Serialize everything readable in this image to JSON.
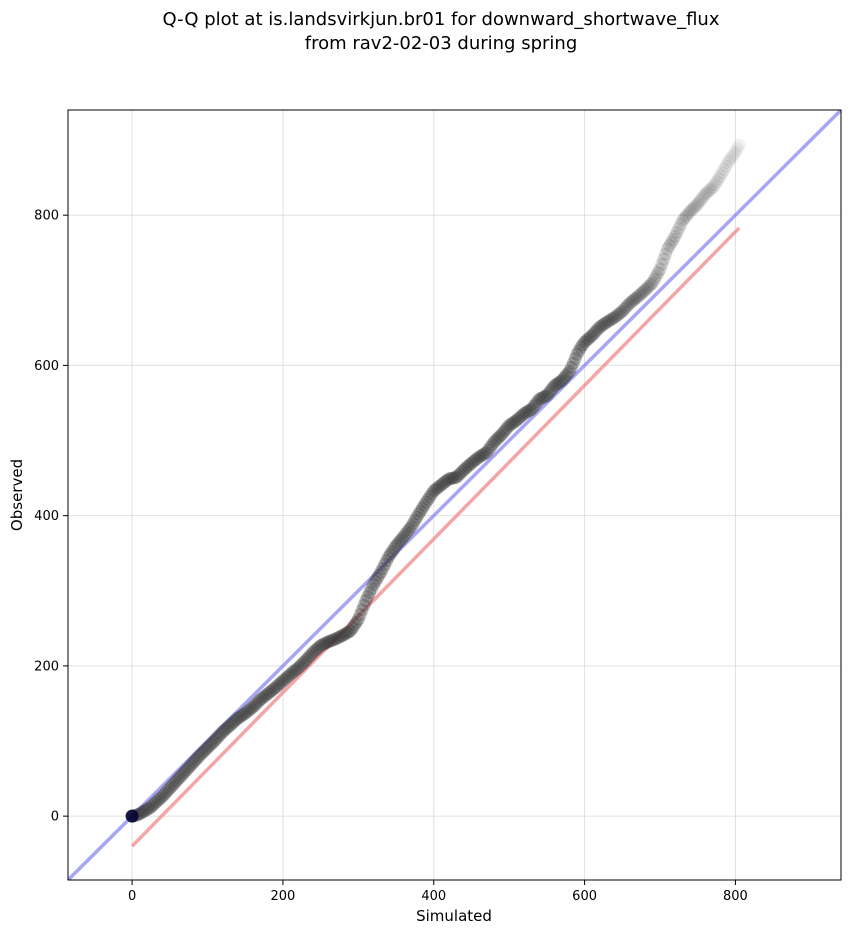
{
  "chart_data": {
    "type": "scatter",
    "title": "Q-Q plot at is.landsvirkjun.br01 for downward_shortwave_flux",
    "subtitle": "from rav2-02-03 during spring",
    "xlabel": "Simulated",
    "ylabel": "Observed",
    "xlim": [
      -85,
      940
    ],
    "ylim": [
      -85,
      940
    ],
    "xticks": [
      0,
      200,
      400,
      600,
      800
    ],
    "yticks": [
      0,
      200,
      400,
      600,
      800
    ],
    "grid": true,
    "lines": [
      {
        "kind": "identity",
        "color": "#7777ee",
        "x": [
          -85,
          940
        ],
        "y": [
          -85,
          940
        ]
      },
      {
        "kind": "fit",
        "color": "#ee7777",
        "x": [
          0,
          805
        ],
        "y": [
          -40,
          783
        ]
      }
    ],
    "quantiles": {
      "x": [
        0,
        5,
        10,
        15,
        20,
        25,
        30,
        40,
        50,
        60,
        70,
        80,
        90,
        100,
        110,
        120,
        130,
        140,
        150,
        160,
        170,
        180,
        190,
        200,
        210,
        220,
        230,
        240,
        250,
        260,
        270,
        280,
        290,
        300,
        310,
        320,
        330,
        340,
        350,
        360,
        370,
        380,
        390,
        400,
        410,
        420,
        430,
        440,
        450,
        460,
        470,
        480,
        490,
        500,
        510,
        520,
        530,
        540,
        550,
        560,
        570,
        580,
        585,
        590,
        595,
        600,
        610,
        620,
        630,
        640,
        650,
        660,
        670,
        680,
        690,
        700,
        710,
        720,
        730,
        740,
        750,
        760,
        770,
        780,
        790,
        800,
        805
      ],
      "y": [
        0,
        1,
        3,
        6,
        9,
        12,
        17,
        26,
        37,
        48,
        59,
        70,
        81,
        91,
        101,
        112,
        121,
        130,
        137,
        145,
        155,
        163,
        171,
        180,
        189,
        197,
        207,
        218,
        227,
        232,
        236,
        241,
        247,
        262,
        287,
        308,
        325,
        345,
        360,
        372,
        385,
        402,
        418,
        433,
        441,
        449,
        451,
        461,
        470,
        478,
        484,
        498,
        508,
        520,
        527,
        536,
        542,
        555,
        560,
        573,
        580,
        592,
        603,
        615,
        624,
        631,
        640,
        651,
        658,
        664,
        672,
        683,
        691,
        700,
        710,
        728,
        755,
        772,
        793,
        805,
        815,
        828,
        837,
        852,
        870,
        884,
        893
      ]
    },
    "marker_color": "#333333"
  }
}
